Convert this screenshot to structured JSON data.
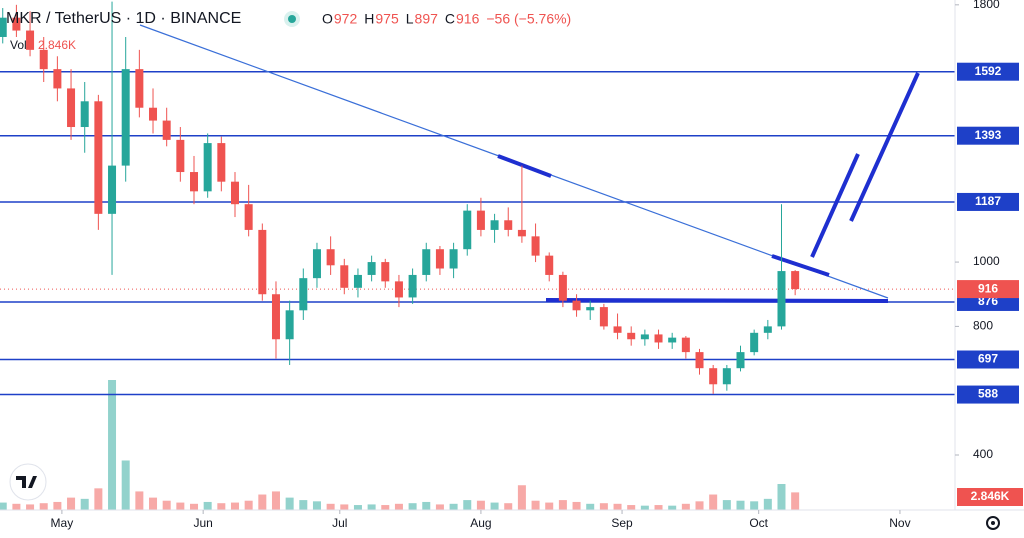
{
  "chart_data": {
    "type": "candlestick",
    "title": "MKR / TetherUS · 1D · BINANCE",
    "ohlc_header": [
      {
        "label": "O",
        "value": 972
      },
      {
        "label": "H",
        "value": 975
      },
      {
        "label": "L",
        "value": 897
      },
      {
        "label": "C",
        "value": 916
      }
    ],
    "change": "−56 (−5.76%)",
    "volume_title": "Vol",
    "volume_label": "2.846K",
    "last_price": 916,
    "up_color": "#26a69a",
    "down_color": "#ef5350",
    "level_color": "#1e40c8",
    "ohlc": [
      [
        1700,
        1790,
        1680,
        1760
      ],
      [
        1760,
        1800,
        1700,
        1720
      ],
      [
        1720,
        1780,
        1640,
        1660
      ],
      [
        1660,
        1700,
        1560,
        1600
      ],
      [
        1600,
        1640,
        1500,
        1540
      ],
      [
        1540,
        1600,
        1380,
        1420
      ],
      [
        1420,
        1560,
        1340,
        1500
      ],
      [
        1500,
        1520,
        1100,
        1150
      ],
      [
        1150,
        1810,
        960,
        1300
      ],
      [
        1300,
        1700,
        1250,
        1600
      ],
      [
        1600,
        1660,
        1450,
        1480
      ],
      [
        1480,
        1540,
        1400,
        1440
      ],
      [
        1440,
        1480,
        1360,
        1380
      ],
      [
        1380,
        1420,
        1250,
        1280
      ],
      [
        1280,
        1330,
        1180,
        1220
      ],
      [
        1220,
        1400,
        1200,
        1370
      ],
      [
        1370,
        1390,
        1220,
        1250
      ],
      [
        1250,
        1280,
        1140,
        1180
      ],
      [
        1180,
        1240,
        1080,
        1100
      ],
      [
        1100,
        1120,
        880,
        900
      ],
      [
        900,
        940,
        700,
        760
      ],
      [
        760,
        880,
        680,
        850
      ],
      [
        850,
        980,
        820,
        950
      ],
      [
        950,
        1060,
        920,
        1040
      ],
      [
        1040,
        1080,
        960,
        990
      ],
      [
        990,
        1010,
        900,
        920
      ],
      [
        920,
        980,
        890,
        960
      ],
      [
        960,
        1020,
        940,
        1000
      ],
      [
        1000,
        1010,
        920,
        940
      ],
      [
        940,
        960,
        860,
        890
      ],
      [
        890,
        980,
        870,
        960
      ],
      [
        960,
        1060,
        940,
        1040
      ],
      [
        1040,
        1050,
        960,
        980
      ],
      [
        980,
        1060,
        950,
        1040
      ],
      [
        1040,
        1180,
        1020,
        1160
      ],
      [
        1160,
        1200,
        1080,
        1100
      ],
      [
        1100,
        1150,
        1060,
        1130
      ],
      [
        1130,
        1170,
        1080,
        1100
      ],
      [
        1100,
        1300,
        1060,
        1080
      ],
      [
        1080,
        1120,
        1000,
        1020
      ],
      [
        1020,
        1030,
        940,
        960
      ],
      [
        960,
        970,
        860,
        880
      ],
      [
        880,
        900,
        830,
        850
      ],
      [
        850,
        880,
        820,
        860
      ],
      [
        860,
        870,
        790,
        800
      ],
      [
        800,
        840,
        760,
        780
      ],
      [
        780,
        800,
        740,
        760
      ],
      [
        760,
        790,
        740,
        775
      ],
      [
        775,
        790,
        730,
        750
      ],
      [
        750,
        780,
        730,
        765
      ],
      [
        765,
        770,
        700,
        720
      ],
      [
        720,
        730,
        650,
        670
      ],
      [
        670,
        680,
        590,
        620
      ],
      [
        620,
        680,
        600,
        670
      ],
      [
        670,
        740,
        660,
        720
      ],
      [
        720,
        790,
        710,
        780
      ],
      [
        780,
        820,
        760,
        800
      ],
      [
        800,
        1180,
        790,
        972
      ],
      [
        972,
        975,
        897,
        916
      ]
    ],
    "volume": [
      1.2,
      1.0,
      0.9,
      1.1,
      1.3,
      2.0,
      1.8,
      3.5,
      21,
      8,
      3,
      2,
      1.5,
      1.2,
      1.0,
      1.3,
      1.1,
      1.2,
      1.5,
      2.5,
      3.0,
      2.0,
      1.6,
      1.4,
      1.0,
      0.9,
      0.8,
      0.9,
      0.8,
      1.0,
      1.1,
      1.3,
      0.9,
      1.0,
      1.6,
      1.5,
      1.2,
      1.1,
      4.0,
      1.5,
      1.2,
      1.6,
      1.3,
      1.0,
      1.1,
      1.0,
      0.8,
      0.7,
      0.8,
      0.7,
      1.0,
      1.4,
      2.5,
      1.6,
      1.5,
      1.4,
      1.8,
      4.2,
      2.846
    ],
    "levels": [
      1592,
      1393,
      1187,
      876,
      697,
      588
    ],
    "ylim": [
      229,
      1815
    ],
    "yticks": [
      400,
      800,
      1000,
      1800
    ],
    "xlim": [
      -0.2,
      69.7
    ],
    "xticks": [
      {
        "value": 4.33,
        "label": "May"
      },
      {
        "value": 14.67,
        "label": "Jun"
      },
      {
        "value": 24.67,
        "label": "Jul"
      },
      {
        "value": 35,
        "label": "Aug"
      },
      {
        "value": 45.33,
        "label": "Sep"
      },
      {
        "value": 55.33,
        "label": "Oct"
      },
      {
        "value": 65.67,
        "label": "Nov"
      }
    ]
  }
}
